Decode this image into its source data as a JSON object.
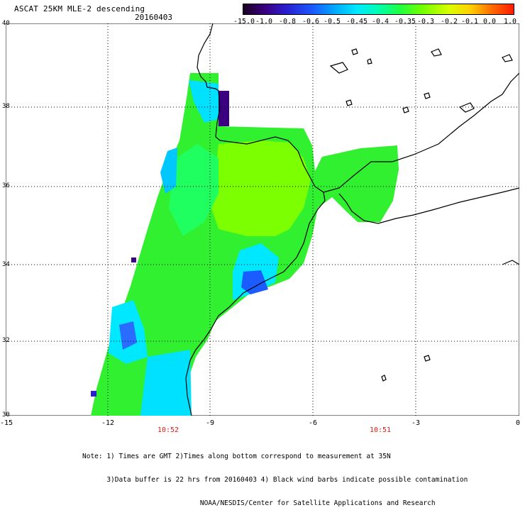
{
  "header": {
    "title": "ASCAT 25KM MLE-2 descending",
    "date": "20160403"
  },
  "colorbar": {
    "labels": [
      "-15.0",
      "-1.0",
      "-0.8",
      "-0.6",
      "-0.5",
      "-0.45",
      "-0.4",
      "-0.35",
      "-0.3",
      "-0.2",
      "-0.1",
      "0.0",
      "1.0"
    ],
    "colors": [
      "#1a0020",
      "#3a0080",
      "#2a1ed0",
      "#1a5cff",
      "#00aaff",
      "#00e8ff",
      "#00ffb0",
      "#20ff40",
      "#70ff00",
      "#d8ff00",
      "#ffd000",
      "#ff6a00",
      "#ff1a00"
    ]
  },
  "axes": {
    "lat_labels": [
      "40",
      "38",
      "36",
      "34",
      "32",
      "30"
    ],
    "lon_labels": [
      "-15",
      "-12",
      "-9",
      "-6",
      "-3",
      "0"
    ]
  },
  "pass_times": [
    "10:52",
    "10:51"
  ],
  "footer": {
    "note_lines": [
      "Note: 1) Times are GMT 2)Times along bottom correspond to measurement at 35N",
      "      3)Data buffer is 22 hrs from 20160403 4) Black wind barbs indicate possible contamination",
      "                             NOAA/NESDIS/Center for Satellite Applications and Research"
    ]
  }
}
